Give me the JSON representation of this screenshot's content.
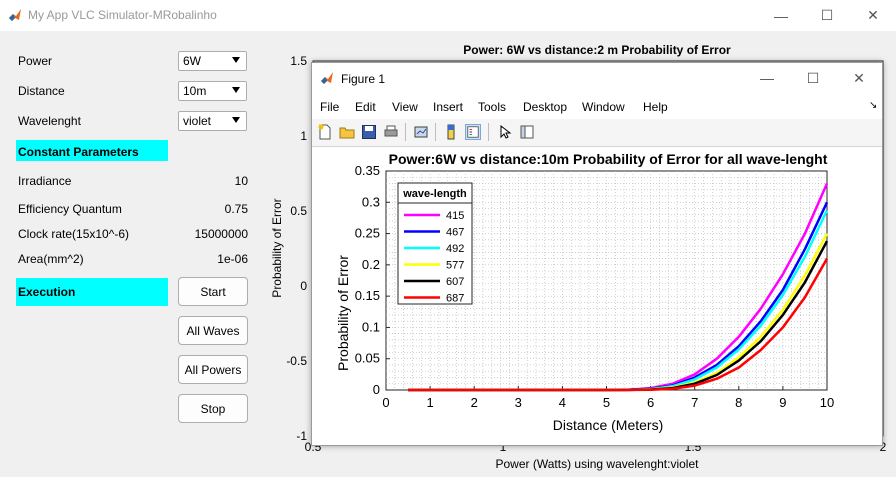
{
  "window": {
    "title": "My App VLC Simulator-MRobalinho",
    "minimize_glyph": "—",
    "maximize_glyph": "☐",
    "close_glyph": "✕"
  },
  "controls": {
    "power_label": "Power",
    "power_value": "6W",
    "distance_label": "Distance",
    "distance_value": "10m",
    "wavelength_label": "Wavelenght",
    "wavelength_value": "violet",
    "constant_header": "Constant Parameters",
    "irradiance_label": "Irradiance",
    "irradiance_value": "10",
    "efficiency_label": "Efficiency Quantum",
    "efficiency_value": "0.75",
    "clock_label": "Clock rate(15x10^-6)",
    "clock_value": "15000000",
    "area_label": "Area(mm^2)",
    "area_value": "1e-06",
    "execution_header": "Execution",
    "start_button": "Start",
    "all_waves_button": "All Waves",
    "all_powers_button": "All Powers",
    "stop_button": "Stop"
  },
  "figure": {
    "title": "Figure 1",
    "minimize_glyph": "—",
    "maximize_glyph": "☐",
    "close_glyph": "✕",
    "menu": [
      "File",
      "Edit",
      "View",
      "Insert",
      "Tools",
      "Desktop",
      "Window",
      "Help"
    ],
    "menu_overflow_glyph": "↘"
  },
  "colors": {
    "accent_cyan": "#00ffff",
    "series_415": "#ff00ff",
    "series_467": "#0000ff",
    "series_492": "#00ffff",
    "series_577": "#ffff00",
    "series_607": "#000000",
    "series_687": "#ff0000"
  },
  "chart_data": [
    {
      "type": "line",
      "title": "Power: 6W   vs distance:2 m Probability of Error",
      "xlabel": "Power (Watts) using wavelenght:violet",
      "ylabel": "Probability of Error",
      "xlim": [
        0.5,
        2
      ],
      "ylim": [
        -1,
        1.5
      ],
      "xticks": [
        "0.5",
        "1",
        "1.5",
        "2"
      ],
      "yticks": [
        "-1",
        "-0.5",
        "0",
        "0.5",
        "1",
        "1.5"
      ],
      "series": []
    },
    {
      "type": "line",
      "title": "Power:6W   vs distance:10m Probability of Error for all wave-lenght",
      "xlabel": "Distance (Meters)",
      "ylabel": "Probability of Error",
      "xlim": [
        0,
        10
      ],
      "ylim": [
        0,
        0.35
      ],
      "grid": true,
      "xticks": [
        "0",
        "1",
        "2",
        "3",
        "4",
        "5",
        "6",
        "7",
        "8",
        "9",
        "10"
      ],
      "yticks": [
        "0",
        "0.05",
        "0.1",
        "0.15",
        "0.2",
        "0.25",
        "0.3",
        "0.35"
      ],
      "legend_title": "wave-length",
      "legend_position": "top-left",
      "x": [
        0.5,
        5,
        5.5,
        6,
        6.5,
        7,
        7.5,
        8,
        8.5,
        9,
        9.5,
        10
      ],
      "series": [
        {
          "name": "415",
          "color": "#ff00ff",
          "values": [
            0,
            0,
            0.0005,
            0.003,
            0.01,
            0.025,
            0.05,
            0.085,
            0.13,
            0.185,
            0.25,
            0.33
          ]
        },
        {
          "name": "467",
          "color": "#0000ff",
          "values": [
            0,
            0,
            0.0003,
            0.002,
            0.007,
            0.02,
            0.04,
            0.07,
            0.11,
            0.16,
            0.225,
            0.3
          ]
        },
        {
          "name": "492",
          "color": "#00ffff",
          "values": [
            0,
            0,
            0.0002,
            0.0015,
            0.006,
            0.017,
            0.036,
            0.065,
            0.103,
            0.152,
            0.213,
            0.287
          ]
        },
        {
          "name": "577",
          "color": "#ffff00",
          "values": [
            0,
            0,
            0.0001,
            0.001,
            0.004,
            0.012,
            0.027,
            0.052,
            0.085,
            0.128,
            0.183,
            0.25
          ]
        },
        {
          "name": "607",
          "color": "#000000",
          "values": [
            0,
            0,
            0.0001,
            0.0008,
            0.003,
            0.01,
            0.024,
            0.047,
            0.078,
            0.12,
            0.172,
            0.238
          ]
        },
        {
          "name": "687",
          "color": "#ff0000",
          "values": [
            0,
            0,
            0,
            0.0004,
            0.002,
            0.007,
            0.018,
            0.036,
            0.064,
            0.1,
            0.148,
            0.21
          ]
        }
      ]
    }
  ]
}
